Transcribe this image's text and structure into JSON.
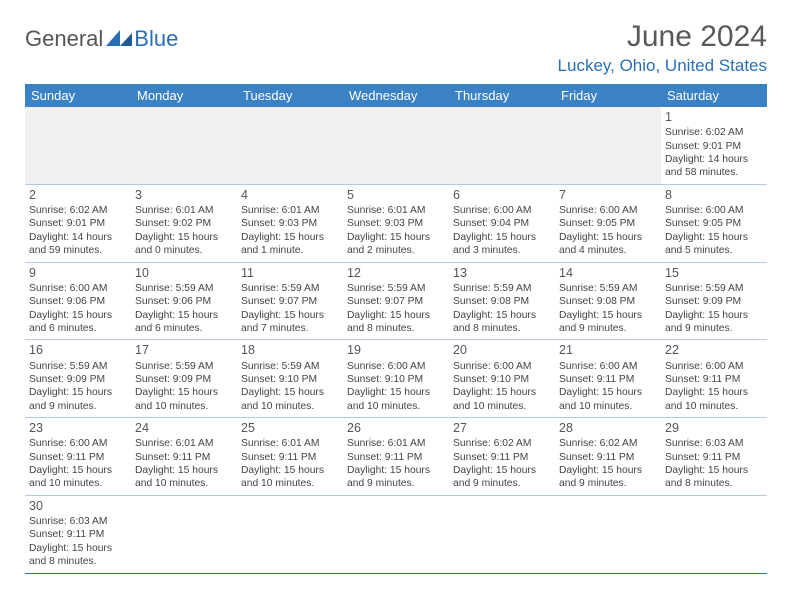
{
  "logo": {
    "general": "General",
    "blue": "Blue"
  },
  "title": "June 2024",
  "location": "Luckey, Ohio, United States",
  "colors": {
    "header_bg": "#3b82c4",
    "accent": "#2a6fb5",
    "text": "#444444",
    "title_text": "#595959"
  },
  "days": [
    "Sunday",
    "Monday",
    "Tuesday",
    "Wednesday",
    "Thursday",
    "Friday",
    "Saturday"
  ],
  "weeks": [
    [
      null,
      null,
      null,
      null,
      null,
      null,
      {
        "n": "1",
        "sr": "6:02 AM",
        "ss": "9:01 PM",
        "dl": "14 hours and 58 minutes."
      }
    ],
    [
      {
        "n": "2",
        "sr": "6:02 AM",
        "ss": "9:01 PM",
        "dl": "14 hours and 59 minutes."
      },
      {
        "n": "3",
        "sr": "6:01 AM",
        "ss": "9:02 PM",
        "dl": "15 hours and 0 minutes."
      },
      {
        "n": "4",
        "sr": "6:01 AM",
        "ss": "9:03 PM",
        "dl": "15 hours and 1 minute."
      },
      {
        "n": "5",
        "sr": "6:01 AM",
        "ss": "9:03 PM",
        "dl": "15 hours and 2 minutes."
      },
      {
        "n": "6",
        "sr": "6:00 AM",
        "ss": "9:04 PM",
        "dl": "15 hours and 3 minutes."
      },
      {
        "n": "7",
        "sr": "6:00 AM",
        "ss": "9:05 PM",
        "dl": "15 hours and 4 minutes."
      },
      {
        "n": "8",
        "sr": "6:00 AM",
        "ss": "9:05 PM",
        "dl": "15 hours and 5 minutes."
      }
    ],
    [
      {
        "n": "9",
        "sr": "6:00 AM",
        "ss": "9:06 PM",
        "dl": "15 hours and 6 minutes."
      },
      {
        "n": "10",
        "sr": "5:59 AM",
        "ss": "9:06 PM",
        "dl": "15 hours and 6 minutes."
      },
      {
        "n": "11",
        "sr": "5:59 AM",
        "ss": "9:07 PM",
        "dl": "15 hours and 7 minutes."
      },
      {
        "n": "12",
        "sr": "5:59 AM",
        "ss": "9:07 PM",
        "dl": "15 hours and 8 minutes."
      },
      {
        "n": "13",
        "sr": "5:59 AM",
        "ss": "9:08 PM",
        "dl": "15 hours and 8 minutes."
      },
      {
        "n": "14",
        "sr": "5:59 AM",
        "ss": "9:08 PM",
        "dl": "15 hours and 9 minutes."
      },
      {
        "n": "15",
        "sr": "5:59 AM",
        "ss": "9:09 PM",
        "dl": "15 hours and 9 minutes."
      }
    ],
    [
      {
        "n": "16",
        "sr": "5:59 AM",
        "ss": "9:09 PM",
        "dl": "15 hours and 9 minutes."
      },
      {
        "n": "17",
        "sr": "5:59 AM",
        "ss": "9:09 PM",
        "dl": "15 hours and 10 minutes."
      },
      {
        "n": "18",
        "sr": "5:59 AM",
        "ss": "9:10 PM",
        "dl": "15 hours and 10 minutes."
      },
      {
        "n": "19",
        "sr": "6:00 AM",
        "ss": "9:10 PM",
        "dl": "15 hours and 10 minutes."
      },
      {
        "n": "20",
        "sr": "6:00 AM",
        "ss": "9:10 PM",
        "dl": "15 hours and 10 minutes."
      },
      {
        "n": "21",
        "sr": "6:00 AM",
        "ss": "9:11 PM",
        "dl": "15 hours and 10 minutes."
      },
      {
        "n": "22",
        "sr": "6:00 AM",
        "ss": "9:11 PM",
        "dl": "15 hours and 10 minutes."
      }
    ],
    [
      {
        "n": "23",
        "sr": "6:00 AM",
        "ss": "9:11 PM",
        "dl": "15 hours and 10 minutes."
      },
      {
        "n": "24",
        "sr": "6:01 AM",
        "ss": "9:11 PM",
        "dl": "15 hours and 10 minutes."
      },
      {
        "n": "25",
        "sr": "6:01 AM",
        "ss": "9:11 PM",
        "dl": "15 hours and 10 minutes."
      },
      {
        "n": "26",
        "sr": "6:01 AM",
        "ss": "9:11 PM",
        "dl": "15 hours and 9 minutes."
      },
      {
        "n": "27",
        "sr": "6:02 AM",
        "ss": "9:11 PM",
        "dl": "15 hours and 9 minutes."
      },
      {
        "n": "28",
        "sr": "6:02 AM",
        "ss": "9:11 PM",
        "dl": "15 hours and 9 minutes."
      },
      {
        "n": "29",
        "sr": "6:03 AM",
        "ss": "9:11 PM",
        "dl": "15 hours and 8 minutes."
      }
    ],
    [
      {
        "n": "30",
        "sr": "6:03 AM",
        "ss": "9:11 PM",
        "dl": "15 hours and 8 minutes."
      },
      null,
      null,
      null,
      null,
      null,
      null
    ]
  ],
  "labels": {
    "sunrise": "Sunrise: ",
    "sunset": "Sunset: ",
    "daylight": "Daylight: "
  }
}
